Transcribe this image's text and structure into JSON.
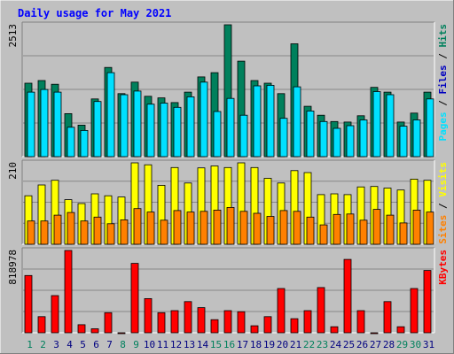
{
  "colors": {
    "background": "#C0C0C0",
    "panel": "#C0C0C0",
    "grid": "#888888",
    "title": "#0000FF",
    "hits": "#00805C",
    "files": "#00C0FF",
    "pages": "#00E0FF",
    "visits": "#FFFF00",
    "sites": "#FF8000",
    "kbytes": "#FF0000",
    "day_normal": "#000080",
    "day_weekend": "#00805C"
  },
  "chart_data": {
    "type": "bar",
    "title": "Daily usage for May 2021",
    "categories": [
      "1",
      "2",
      "3",
      "4",
      "5",
      "6",
      "7",
      "8",
      "9",
      "10",
      "11",
      "12",
      "13",
      "14",
      "15",
      "16",
      "17",
      "18",
      "19",
      "20",
      "21",
      "22",
      "23",
      "24",
      "25",
      "26",
      "27",
      "28",
      "29",
      "30",
      "31"
    ],
    "weekend_days": [
      "1",
      "2",
      "8",
      "9",
      "15",
      "16",
      "22",
      "23",
      "29",
      "30"
    ],
    "panels": [
      {
        "name": "hits-files-pages",
        "y_max_label": "2513",
        "ylim": [
          0,
          2513
        ],
        "legend": [
          {
            "text": "Pages",
            "color": "#00E0FF"
          },
          {
            "text": " / ",
            "color": "#000000"
          },
          {
            "text": "Files",
            "color": "#0000C0"
          },
          {
            "text": " / ",
            "color": "#000000"
          },
          {
            "text": "Hits",
            "color": "#00805C"
          }
        ],
        "series": [
          {
            "name": "Hits",
            "color": "#00805C",
            "values": [
              1400,
              1450,
              1380,
              820,
              600,
              1100,
              1700,
              1200,
              1420,
              1150,
              1120,
              1030,
              1230,
              1520,
              1600,
              2513,
              1820,
              1450,
              1400,
              1200,
              2150,
              960,
              790,
              670,
              660,
              780,
              1320,
              1230,
              660,
              830,
              1230
            ]
          },
          {
            "name": "Files",
            "color": "#00E0FF",
            "values": [
              1230,
              1280,
              1230,
              560,
              500,
              1050,
              1600,
              1180,
              1250,
              1000,
              1020,
              940,
              1140,
              1420,
              860,
              1110,
              790,
              1350,
              1360,
              730,
              1330,
              870,
              670,
              540,
              590,
              700,
              1240,
              1180,
              580,
              700,
              1100
            ]
          }
        ]
      },
      {
        "name": "visits-sites",
        "y_max_label": "210",
        "ylim": [
          0,
          210
        ],
        "legend": [
          {
            "text": "Sites",
            "color": "#FF8000"
          },
          {
            "text": " / ",
            "color": "#000000"
          },
          {
            "text": "Visits",
            "color": "#FFFF00"
          }
        ],
        "series": [
          {
            "name": "Visits",
            "color": "#FFFF00",
            "values": [
              125,
              153,
              165,
              115,
              105,
              130,
              125,
              122,
              210,
              205,
              152,
              198,
              158,
              197,
              202,
              198,
              210,
              198,
              170,
              158,
              190,
              185,
              128,
              130,
              128,
              148,
              149,
              145,
              140,
              168,
              165
            ]
          },
          {
            "name": "Sites",
            "color": "#FF8000",
            "values": [
              60,
              60,
              75,
              82,
              60,
              70,
              53,
              63,
              92,
              83,
              62,
              87,
              83,
              85,
              88,
              95,
              85,
              80,
              72,
              87,
              85,
              70,
              50,
              77,
              78,
              62,
              90,
              75,
              55,
              88,
              83
            ]
          }
        ]
      },
      {
        "name": "kbytes",
        "y_max_label": "818978",
        "ylim": [
          0,
          818978
        ],
        "legend": [
          {
            "text": "KBytes",
            "color": "#FF0000"
          }
        ],
        "series": [
          {
            "name": "KBytes",
            "color": "#FF0000",
            "values": [
              570000,
              160000,
              370000,
              818978,
              80000,
              40000,
              200000,
              0,
              690000,
              340000,
              200000,
              220000,
              310000,
              250000,
              130000,
              220000,
              210000,
              70000,
              160000,
              440000,
              140000,
              220000,
              450000,
              60000,
              730000,
              220000,
              0,
              310000,
              60000,
              440000,
              620000
            ]
          }
        ]
      }
    ]
  }
}
